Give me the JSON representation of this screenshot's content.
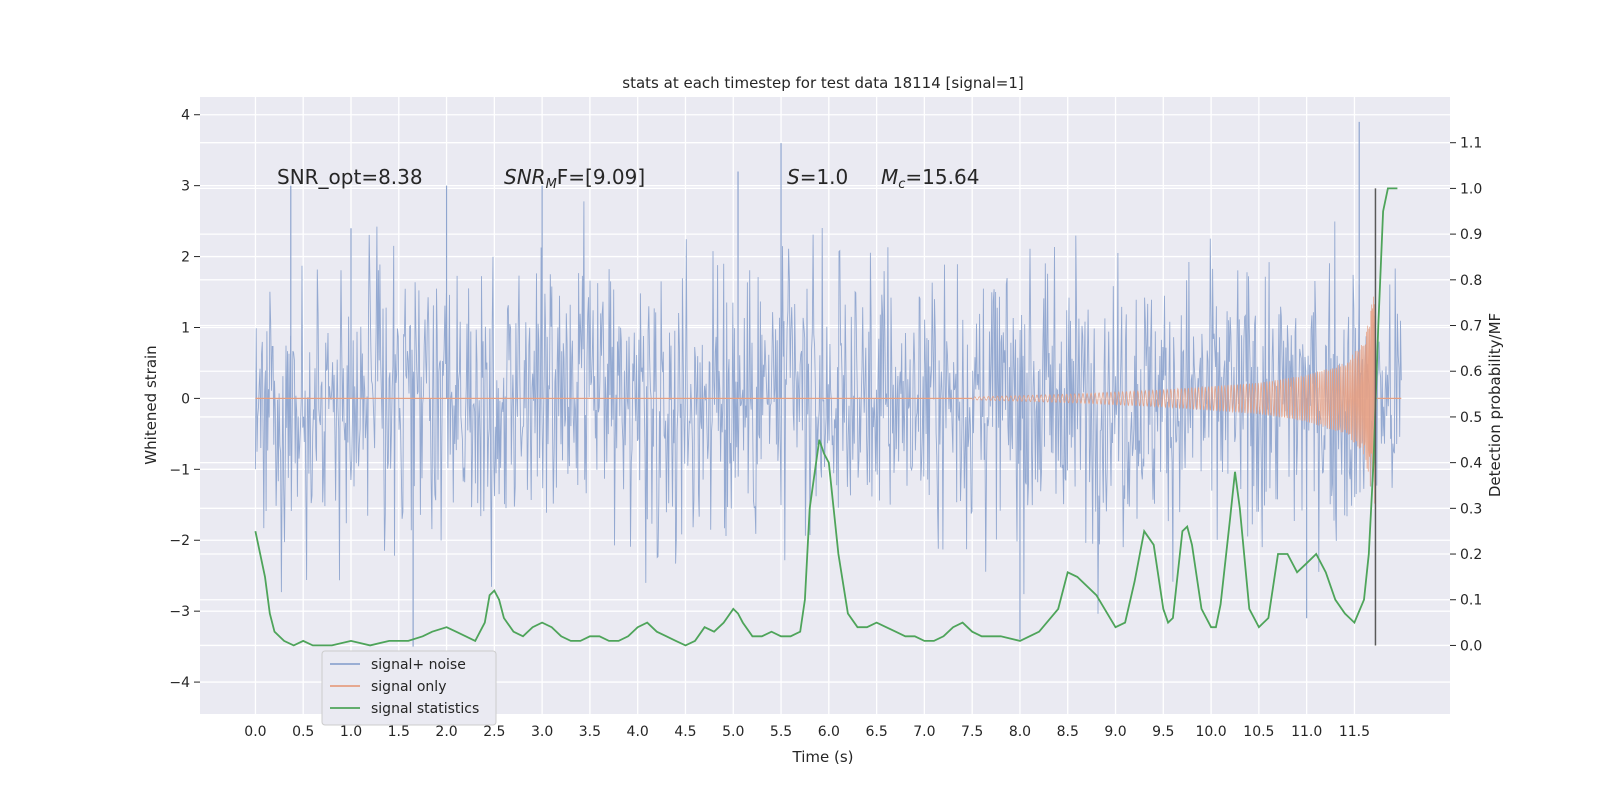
{
  "chart_data": {
    "type": "line",
    "title": "stats at each timestep for test data 18114 [signal=1]",
    "xlabel": "Time (s)",
    "ylabel": "Whitened strain",
    "y2label": "Detection probability/MF",
    "xlim": [
      -0.58,
      12.5
    ],
    "ylim": [
      -4.45,
      4.25
    ],
    "y2lim": [
      -0.15,
      1.2
    ],
    "x_ticks": [
      "0.0",
      "0.5",
      "1.0",
      "1.5",
      "2.0",
      "2.5",
      "3.0",
      "3.5",
      "4.0",
      "4.5",
      "5.0",
      "5.5",
      "6.0",
      "6.5",
      "7.0",
      "7.5",
      "8.0",
      "8.5",
      "9.0",
      "9.5",
      "10.0",
      "10.5",
      "11.0",
      "11.5"
    ],
    "y_ticks": [
      "4",
      "3",
      "2",
      "1",
      "0",
      "−1",
      "−2",
      "−3",
      "−4"
    ],
    "y2_ticks": [
      "1.1",
      "1.0",
      "0.9",
      "0.8",
      "0.7",
      "0.6",
      "0.5",
      "0.4",
      "0.3",
      "0.2",
      "0.1",
      "0.0"
    ],
    "grid": true,
    "legend_placement": "lower-left",
    "annotations": [
      {
        "id": "snr-opt",
        "text": "SNR_opt=8.38",
        "x": 0.2,
        "y": 3.05
      },
      {
        "id": "snr-mf",
        "text": "SNR",
        "sub": "M",
        "rest": "F=[9.09]",
        "x": 2.6,
        "y": 3.05
      },
      {
        "id": "s",
        "text": "S",
        "rest": "=1.0",
        "x": 5.6,
        "y": 3.05
      },
      {
        "id": "mc",
        "text": "M",
        "sub": "c",
        "rest": "=15.64",
        "x": 6.6,
        "y": 3.05
      }
    ],
    "series": [
      {
        "name": "signal+ noise",
        "color": "#8fa5cf",
        "axis": "left",
        "style": "noise",
        "x_range": [
          0.0,
          11.99
        ],
        "envelope_approx": [
          1.9,
          -1.9
        ],
        "max": 3.9,
        "min": -3.6,
        "notable_spikes": [
          [
            0.37,
            3.0
          ],
          [
            1.0,
            2.4
          ],
          [
            1.65,
            -3.5
          ],
          [
            2.0,
            3.0
          ],
          [
            3.0,
            3.0
          ],
          [
            5.5,
            3.6
          ],
          [
            5.05,
            3.2
          ],
          [
            8.0,
            -3.4
          ],
          [
            11.55,
            3.9
          ],
          [
            11.0,
            -3.1
          ]
        ]
      },
      {
        "name": "signal only",
        "color": "#e59f82",
        "axis": "left",
        "style": "chirp",
        "x_start": 7.5,
        "x_end": 11.72,
        "amplitude_points": [
          [
            7.5,
            0.02
          ],
          [
            8.5,
            0.06
          ],
          [
            9.5,
            0.12
          ],
          [
            10.5,
            0.22
          ],
          [
            11.0,
            0.33
          ],
          [
            11.4,
            0.5
          ],
          [
            11.6,
            0.8
          ],
          [
            11.7,
            1.5
          ]
        ]
      },
      {
        "name": "signal statistics",
        "color": "#4ea45a",
        "axis": "right",
        "style": "line",
        "x": [
          0.0,
          0.1,
          0.15,
          0.2,
          0.3,
          0.4,
          0.5,
          0.6,
          0.8,
          1.0,
          1.2,
          1.4,
          1.6,
          1.75,
          1.85,
          2.0,
          2.1,
          2.2,
          2.3,
          2.4,
          2.45,
          2.5,
          2.55,
          2.6,
          2.7,
          2.8,
          2.9,
          3.0,
          3.1,
          3.2,
          3.3,
          3.4,
          3.5,
          3.6,
          3.7,
          3.8,
          3.9,
          4.0,
          4.1,
          4.2,
          4.3,
          4.4,
          4.5,
          4.6,
          4.7,
          4.8,
          4.9,
          5.0,
          5.05,
          5.1,
          5.2,
          5.3,
          5.4,
          5.5,
          5.6,
          5.7,
          5.75,
          5.8,
          5.9,
          5.95,
          6.0,
          6.05,
          6.1,
          6.2,
          6.3,
          6.4,
          6.5,
          6.6,
          6.7,
          6.8,
          6.9,
          7.0,
          7.1,
          7.2,
          7.3,
          7.4,
          7.5,
          7.6,
          7.8,
          8.0,
          8.2,
          8.4,
          8.5,
          8.6,
          8.8,
          9.0,
          9.1,
          9.2,
          9.3,
          9.4,
          9.5,
          9.55,
          9.6,
          9.7,
          9.75,
          9.8,
          9.9,
          10.0,
          10.05,
          10.1,
          10.2,
          10.25,
          10.3,
          10.4,
          10.5,
          10.6,
          10.7,
          10.8,
          10.9,
          11.0,
          11.1,
          11.2,
          11.3,
          11.4,
          11.5,
          11.6,
          11.65,
          11.7,
          11.75,
          11.8,
          11.85,
          11.9,
          11.95
        ],
        "y": [
          0.25,
          0.15,
          0.07,
          0.03,
          0.01,
          0.0,
          0.01,
          0.0,
          0.0,
          0.01,
          0.0,
          0.01,
          0.01,
          0.02,
          0.03,
          0.04,
          0.03,
          0.02,
          0.01,
          0.05,
          0.11,
          0.12,
          0.1,
          0.06,
          0.03,
          0.02,
          0.04,
          0.05,
          0.04,
          0.02,
          0.01,
          0.01,
          0.02,
          0.02,
          0.01,
          0.01,
          0.02,
          0.04,
          0.05,
          0.03,
          0.02,
          0.01,
          0.0,
          0.01,
          0.04,
          0.03,
          0.05,
          0.08,
          0.07,
          0.05,
          0.02,
          0.02,
          0.03,
          0.02,
          0.02,
          0.03,
          0.1,
          0.3,
          0.45,
          0.42,
          0.4,
          0.3,
          0.2,
          0.07,
          0.04,
          0.04,
          0.05,
          0.04,
          0.03,
          0.02,
          0.02,
          0.01,
          0.01,
          0.02,
          0.04,
          0.05,
          0.03,
          0.02,
          0.02,
          0.01,
          0.03,
          0.08,
          0.16,
          0.15,
          0.11,
          0.04,
          0.05,
          0.14,
          0.25,
          0.22,
          0.08,
          0.05,
          0.06,
          0.25,
          0.26,
          0.22,
          0.08,
          0.04,
          0.04,
          0.09,
          0.28,
          0.38,
          0.3,
          0.08,
          0.04,
          0.06,
          0.2,
          0.2,
          0.16,
          0.18,
          0.2,
          0.16,
          0.1,
          0.07,
          0.05,
          0.1,
          0.2,
          0.4,
          0.7,
          0.95,
          1.0,
          1.0,
          1.0
        ]
      },
      {
        "name": "",
        "color": "#595959",
        "axis": "right",
        "style": "vline",
        "x": 11.72,
        "y_range": [
          0.0,
          1.0
        ]
      }
    ]
  }
}
